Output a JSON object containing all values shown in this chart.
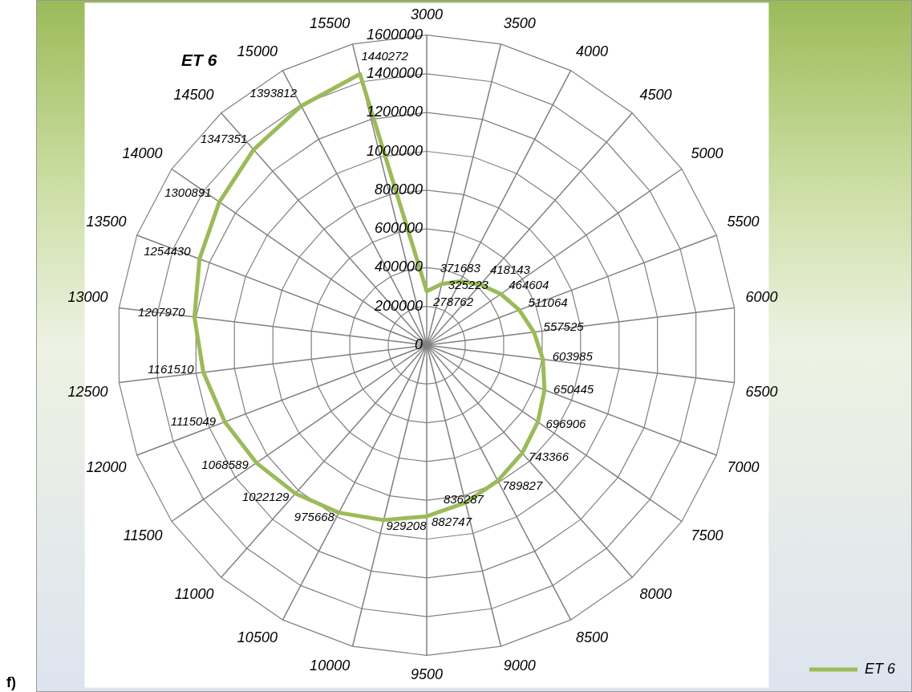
{
  "chart_data": {
    "type": "radar",
    "title": "ET 6",
    "categories": [
      "3000",
      "3500",
      "4000",
      "4500",
      "5000",
      "5500",
      "6000",
      "6500",
      "7000",
      "7500",
      "8000",
      "8500",
      "9000",
      "9500",
      "10000",
      "10500",
      "11000",
      "11500",
      "12000",
      "12500",
      "13000",
      "13500",
      "14000",
      "14500",
      "15000",
      "15500"
    ],
    "series": [
      {
        "name": "ET 6",
        "color": "#9bbb59",
        "values": [
          278762,
          325223,
          371683,
          418143,
          464604,
          511064,
          557525,
          603985,
          650445,
          696906,
          743366,
          789827,
          836287,
          882747,
          929208,
          975668,
          1022129,
          1068589,
          1115049,
          1161510,
          1207970,
          1254430,
          1300891,
          1347351,
          1393812,
          1440272
        ]
      }
    ],
    "ylim": [
      0,
      1600000
    ],
    "yticks": [
      0,
      200000,
      400000,
      600000,
      800000,
      1000000,
      1200000,
      1400000,
      1600000
    ],
    "grid": true,
    "legend": "bottom right",
    "marker": "none",
    "data_labels": true,
    "annotations": [
      "f)"
    ]
  }
}
